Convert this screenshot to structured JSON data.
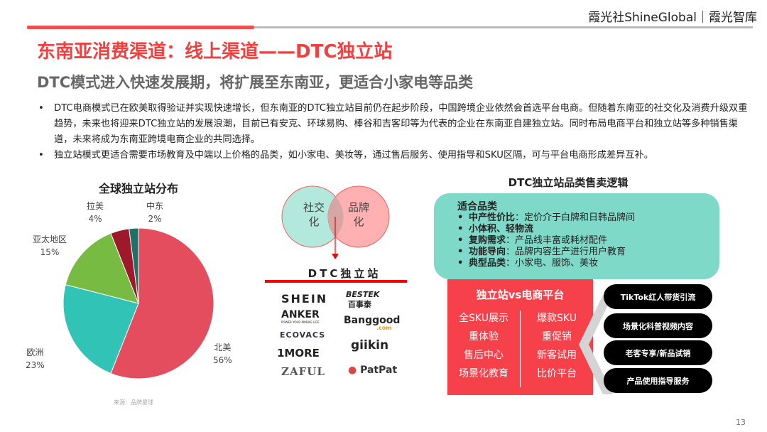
{
  "header": {
    "brand": "霞光社ShineGlobal｜霞光智库",
    "title": "东南亚消费渠道：线上渠道——DTC独立站",
    "subtitle": "DTC模式进入快速发展期，将扩展至东南亚，更适合小家电等品类"
  },
  "bullets": [
    "DTC电商模式已在欧美取得验证并实现快速增长，但东南亚的DTC独立站目前仍在起步阶段，中国跨境企业依然会首选平台电商。但随着东南亚的社交化及消费升级双重趋势，未来也将迎来DTC独立站的发展浪潮，目前已有安克、环球易购、棒谷和吉客印等为代表的企业在东南亚自建独立站。同时布局电商平台和独立站等多种销售渠道，未来将成为东南亚跨境电商企业的共同选择。",
    "独立站模式更适合需要市场教育及中端以上价格的品类，如小家电、美妆等，通过售后服务、使用指导和SKU区隔，可与平台电商形成差异互补。"
  ],
  "chart_data": {
    "type": "pie",
    "title": "全球独立站分布",
    "categories": [
      "北美",
      "欧洲",
      "亚太地区",
      "拉美",
      "中东"
    ],
    "values": [
      56,
      23,
      15,
      4,
      2
    ],
    "labels": [
      "56%",
      "23%",
      "15%",
      "4%",
      "2%"
    ],
    "colors": [
      "#e44d5e",
      "#31c3b5",
      "#78bb43",
      "#9e1a2a",
      "#1e7169"
    ],
    "source": "来源：品牌星球"
  },
  "venn": {
    "left": [
      "社交",
      "化"
    ],
    "right": [
      "品牌",
      "化"
    ],
    "colors": {
      "left": "#b3e8dd",
      "right": "#ffa7a9",
      "edge": "#f06060"
    }
  },
  "dtc": {
    "title": "DTC独立站",
    "logos": [
      "SHEIN",
      "BESTEK",
      "百事泰",
      "ANKER",
      "POWER YOUR MOBILE LIFE",
      "Banggood",
      ".com",
      "ECOVACS",
      "giikin",
      "1MORE",
      "ZAFUL",
      "PatPat"
    ]
  },
  "logic": {
    "title": "DTC独立站品类售卖逻辑",
    "green_head": "适合品类",
    "items": [
      {
        "k": "中产性价比",
        "v": "：定价介于白牌和日韩品牌间"
      },
      {
        "k": "小体积、轻物流",
        "v": ""
      },
      {
        "k": "复购需求",
        "v": "：产品线丰富或耗材配件"
      },
      {
        "k": "功能导向",
        "v": "：品牌内容生产进行用户教育"
      },
      {
        "k": "典型品类",
        "v": "：小家电、服饰、美妆"
      }
    ],
    "vs_title": "独立站vs电商平台",
    "left_col": [
      "全SKU展示",
      "重体验",
      "售后中心",
      "场景化教育"
    ],
    "right_col": [
      "爆款SKU",
      "重促销",
      "新客试用",
      "比价平台"
    ],
    "pills": [
      "TikTok红人带货引流",
      "场景化科普视频内容",
      "老客专享/新品试销",
      "产品使用指导服务"
    ]
  },
  "page_number": "13"
}
